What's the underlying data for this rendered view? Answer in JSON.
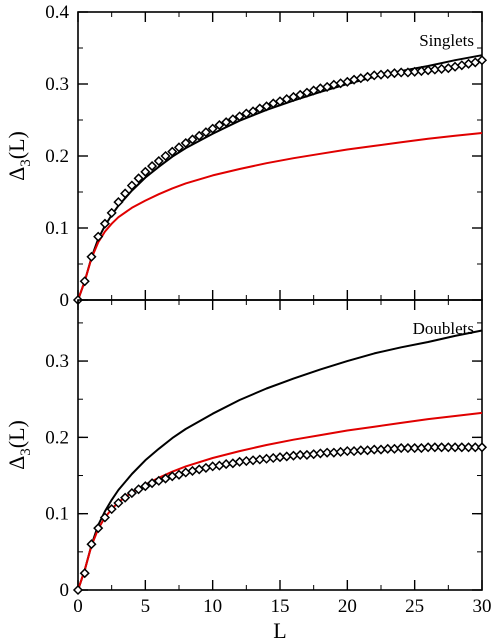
{
  "chart_data": [
    {
      "type": "line",
      "panel_label": "Singlets",
      "xlim": [
        0,
        30
      ],
      "ylim": [
        0,
        0.4
      ],
      "yticks": [
        0,
        0.1,
        0.2,
        0.3,
        0.4
      ],
      "ytick_labels": [
        "0",
        "0.1",
        "0.2",
        "0.3",
        "0.4"
      ],
      "xtick_labels": [],
      "ylabel_main": "Δ",
      "ylabel_sub": "3",
      "ylabel_tail": "(L)",
      "series": [
        {
          "color": "#000000",
          "style": "line",
          "x": [
            0,
            0.5,
            1,
            1.5,
            2,
            2.5,
            3,
            4,
            5,
            6,
            7,
            8,
            10,
            12,
            14,
            16,
            18,
            20,
            22,
            24,
            26,
            28,
            30
          ],
          "y": [
            0,
            0.026,
            0.059,
            0.085,
            0.103,
            0.118,
            0.131,
            0.152,
            0.17,
            0.185,
            0.199,
            0.211,
            0.231,
            0.249,
            0.264,
            0.277,
            0.289,
            0.3,
            0.31,
            0.318,
            0.325,
            0.333,
            0.34
          ]
        },
        {
          "color": "#e00000",
          "style": "line",
          "x": [
            0,
            0.5,
            1,
            1.5,
            2,
            2.5,
            3,
            4,
            5,
            6,
            7,
            8,
            10,
            12,
            14,
            16,
            18,
            20,
            22,
            24,
            26,
            28,
            30
          ],
          "y": [
            0,
            0.026,
            0.058,
            0.08,
            0.095,
            0.106,
            0.115,
            0.128,
            0.138,
            0.147,
            0.155,
            0.162,
            0.173,
            0.182,
            0.19,
            0.197,
            0.203,
            0.209,
            0.214,
            0.219,
            0.224,
            0.228,
            0.232
          ]
        },
        {
          "color": "#000000",
          "style": "diamond",
          "x": [
            0,
            0.5,
            1,
            1.5,
            2,
            2.5,
            3,
            3.5,
            4,
            4.5,
            5,
            5.5,
            6,
            6.5,
            7,
            7.5,
            8,
            8.5,
            9,
            9.5,
            10,
            10.5,
            11,
            11.5,
            12,
            12.5,
            13,
            13.5,
            14,
            14.5,
            15,
            15.5,
            16,
            16.5,
            17,
            17.5,
            18,
            18.5,
            19,
            19.5,
            20,
            20.5,
            21,
            21.5,
            22,
            22.5,
            23,
            23.5,
            24,
            24.5,
            25,
            25.5,
            26,
            26.5,
            27,
            27.5,
            28,
            28.5,
            29,
            29.5,
            30
          ],
          "y": [
            0,
            0.026,
            0.06,
            0.088,
            0.106,
            0.121,
            0.136,
            0.148,
            0.159,
            0.169,
            0.178,
            0.186,
            0.193,
            0.2,
            0.206,
            0.212,
            0.218,
            0.223,
            0.228,
            0.233,
            0.238,
            0.243,
            0.247,
            0.251,
            0.255,
            0.259,
            0.262,
            0.266,
            0.269,
            0.273,
            0.276,
            0.279,
            0.282,
            0.285,
            0.288,
            0.291,
            0.294,
            0.296,
            0.299,
            0.301,
            0.303,
            0.306,
            0.308,
            0.31,
            0.312,
            0.313,
            0.314,
            0.315,
            0.316,
            0.316,
            0.317,
            0.318,
            0.319,
            0.32,
            0.321,
            0.322,
            0.324,
            0.326,
            0.328,
            0.33,
            0.333
          ]
        }
      ]
    },
    {
      "type": "line",
      "panel_label": "Doublets",
      "xlim": [
        0,
        30
      ],
      "ylim": [
        0,
        0.38
      ],
      "yticks": [
        0,
        0.1,
        0.2,
        0.3
      ],
      "ytick_labels": [
        "0",
        "0.1",
        "0.2",
        "0.3"
      ],
      "xtick_labels": [
        "0",
        "5",
        "10",
        "15",
        "20",
        "25",
        "30"
      ],
      "xlabel": "L",
      "ylabel_main": "Δ",
      "ylabel_sub": "3",
      "ylabel_tail": "(L)",
      "series": [
        {
          "color": "#000000",
          "style": "line",
          "x": [
            0,
            0.5,
            1,
            1.5,
            2,
            2.5,
            3,
            4,
            5,
            6,
            7,
            8,
            10,
            12,
            14,
            16,
            18,
            20,
            22,
            24,
            26,
            28,
            30
          ],
          "y": [
            0,
            0.026,
            0.059,
            0.085,
            0.103,
            0.118,
            0.131,
            0.152,
            0.17,
            0.185,
            0.199,
            0.211,
            0.231,
            0.249,
            0.264,
            0.277,
            0.289,
            0.3,
            0.31,
            0.318,
            0.325,
            0.333,
            0.34
          ]
        },
        {
          "color": "#e00000",
          "style": "line",
          "x": [
            0,
            0.5,
            1,
            1.5,
            2,
            2.5,
            3,
            4,
            5,
            6,
            7,
            8,
            10,
            12,
            14,
            16,
            18,
            20,
            22,
            24,
            26,
            28,
            30
          ],
          "y": [
            0,
            0.026,
            0.058,
            0.08,
            0.095,
            0.106,
            0.115,
            0.128,
            0.138,
            0.147,
            0.155,
            0.162,
            0.173,
            0.182,
            0.19,
            0.197,
            0.203,
            0.209,
            0.214,
            0.219,
            0.224,
            0.228,
            0.232
          ]
        },
        {
          "color": "#000000",
          "style": "diamond",
          "x": [
            0,
            0.5,
            1,
            1.5,
            2,
            2.5,
            3,
            3.5,
            4,
            4.5,
            5,
            5.5,
            6,
            6.5,
            7,
            7.5,
            8,
            8.5,
            9,
            9.5,
            10,
            10.5,
            11,
            11.5,
            12,
            12.5,
            13,
            13.5,
            14,
            14.5,
            15,
            15.5,
            16,
            16.5,
            17,
            17.5,
            18,
            18.5,
            19,
            19.5,
            20,
            20.5,
            21,
            21.5,
            22,
            22.5,
            23,
            23.5,
            24,
            24.5,
            25,
            25.5,
            26,
            26.5,
            27,
            27.5,
            28,
            28.5,
            29,
            29.5,
            30
          ],
          "y": [
            0,
            0.022,
            0.06,
            0.081,
            0.095,
            0.106,
            0.114,
            0.121,
            0.127,
            0.132,
            0.136,
            0.14,
            0.143,
            0.146,
            0.149,
            0.151,
            0.154,
            0.156,
            0.158,
            0.16,
            0.162,
            0.163,
            0.165,
            0.166,
            0.168,
            0.169,
            0.17,
            0.171,
            0.172,
            0.173,
            0.174,
            0.175,
            0.176,
            0.177,
            0.177,
            0.178,
            0.179,
            0.18,
            0.18,
            0.181,
            0.182,
            0.182,
            0.183,
            0.183,
            0.184,
            0.184,
            0.185,
            0.185,
            0.186,
            0.186,
            0.186,
            0.186,
            0.187,
            0.187,
            0.187,
            0.187,
            0.187,
            0.187,
            0.187,
            0.187,
            0.187
          ]
        }
      ]
    }
  ]
}
